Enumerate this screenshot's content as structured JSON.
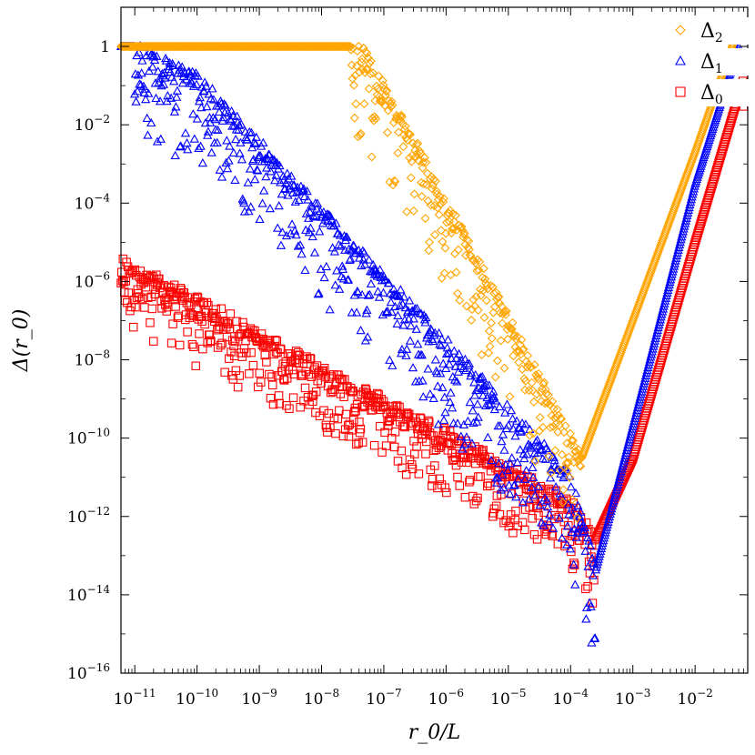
{
  "colors": {
    "delta2": "#ffa500",
    "delta1": "#0000ff",
    "delta0": "#ff0000",
    "axis": "#000000",
    "background": "#ffffff"
  },
  "chart_data": {
    "type": "scatter",
    "title": "",
    "xlabel": "r_0/L",
    "ylabel": "Δ(r_0)",
    "xscale": "log",
    "yscale": "log",
    "xlim": [
      6e-12,
      0.07
    ],
    "ylim": [
      1e-16,
      10
    ],
    "grid": false,
    "legend_position": "top-right",
    "x_ticks": [
      {
        "base": "10",
        "exp": "−11"
      },
      {
        "base": "10",
        "exp": "−10"
      },
      {
        "base": "10",
        "exp": "−9"
      },
      {
        "base": "10",
        "exp": "−8"
      },
      {
        "base": "10",
        "exp": "−7"
      },
      {
        "base": "10",
        "exp": "−6"
      },
      {
        "base": "10",
        "exp": "−5"
      },
      {
        "base": "10",
        "exp": "−4"
      },
      {
        "base": "10",
        "exp": "−3"
      },
      {
        "base": "10",
        "exp": "−2"
      }
    ],
    "y_ticks": [
      {
        "base": "1",
        "exp": ""
      },
      {
        "base": "10",
        "exp": "−2"
      },
      {
        "base": "10",
        "exp": "−4"
      },
      {
        "base": "10",
        "exp": "−6"
      },
      {
        "base": "10",
        "exp": "−8"
      },
      {
        "base": "10",
        "exp": "−10"
      },
      {
        "base": "10",
        "exp": "−12"
      },
      {
        "base": "10",
        "exp": "−14"
      },
      {
        "base": "10",
        "exp": "−16"
      }
    ],
    "series": [
      {
        "name": "Δ2",
        "marker": "diamond",
        "color": "#ffa500",
        "x": [
          6e-12,
          1e-11,
          1e-10,
          1e-09,
          1e-08,
          3e-08,
          5e-08,
          1e-07,
          1e-06,
          1e-05,
          0.0001,
          0.00015,
          0.001,
          0.01,
          0.05
        ],
        "y": [
          1,
          1,
          1,
          1,
          1,
          1,
          0.6,
          0.1,
          0.0001,
          1e-07,
          1e-10,
          3e-11,
          1e-07,
          0.002,
          3
        ]
      },
      {
        "name": "Δ1",
        "marker": "triangle",
        "color": "#0000ff",
        "x": [
          6e-12,
          1e-11,
          1.5e-11,
          1e-10,
          1e-09,
          1e-08,
          1e-07,
          1e-06,
          1e-05,
          0.0001,
          0.00025,
          0.001,
          0.01,
          0.05
        ],
        "y": [
          1,
          1,
          0.8,
          0.15,
          0.003,
          6e-05,
          1.2e-06,
          2.5e-08,
          5e-10,
          1e-11,
          4e-14,
          2e-10,
          0.0003,
          1
        ]
      },
      {
        "name": "Δ0",
        "marker": "square",
        "color": "#ff0000",
        "x": [
          6e-12,
          1e-11,
          1e-10,
          1e-09,
          1e-08,
          1e-07,
          1e-06,
          1e-05,
          0.0001,
          0.00025,
          0.001,
          0.01,
          0.06
        ],
        "y": [
          3e-06,
          2e-06,
          3e-07,
          4e-08,
          6e-09,
          8e-10,
          1.2e-10,
          1.5e-11,
          2e-12,
          2.5e-13,
          3e-11,
          1e-05,
          0.15
        ]
      }
    ]
  }
}
